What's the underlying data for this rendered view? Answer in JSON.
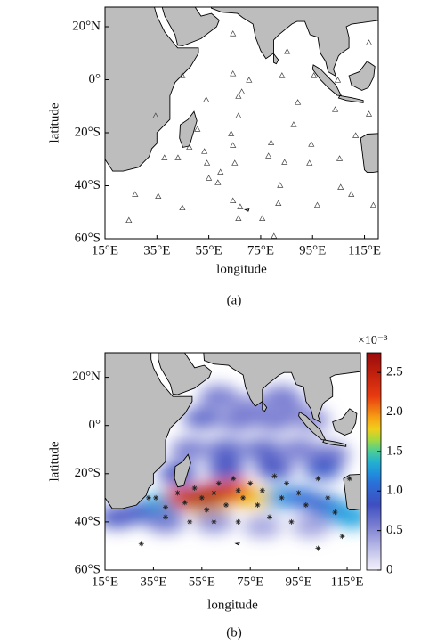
{
  "panels": [
    {
      "caption": "(a)",
      "xlabel": "longitude",
      "ylabel": "latitude",
      "xlim": [
        15,
        120.3
      ],
      "ylim": [
        -60,
        27.4
      ],
      "xticks": [
        {
          "value": 15,
          "label": "15°E"
        },
        {
          "value": 35,
          "label": "35°E"
        },
        {
          "value": 55,
          "label": "55°E"
        },
        {
          "value": 75,
          "label": "75°E"
        },
        {
          "value": 95,
          "label": "95°E"
        },
        {
          "value": 115,
          "label": "115°E"
        }
      ],
      "yticks": [
        {
          "value": 20,
          "label": "20°N"
        },
        {
          "value": 0,
          "label": "0°"
        },
        {
          "value": -20,
          "label": "20°S"
        },
        {
          "value": -40,
          "label": "40°S"
        },
        {
          "value": -60,
          "label": "60°S"
        }
      ],
      "stations": [
        [
          64.3,
          17.3
        ],
        [
          85.2,
          10.6
        ],
        [
          116.7,
          13.9
        ],
        [
          44.8,
          1.5
        ],
        [
          64.3,
          2.2
        ],
        [
          70.5,
          -0.2
        ],
        [
          83.2,
          1.5
        ],
        [
          95.5,
          1.5
        ],
        [
          104.7,
          -0.2
        ],
        [
          67.7,
          -4.6
        ],
        [
          66.4,
          -6.3
        ],
        [
          54.0,
          -7.6
        ],
        [
          34.5,
          -13.7
        ],
        [
          66.4,
          -13.7
        ],
        [
          89.3,
          -8.6
        ],
        [
          103.7,
          -11.3
        ],
        [
          116.7,
          -13.0
        ],
        [
          50.6,
          -18.7
        ],
        [
          63.6,
          -20.4
        ],
        [
          87.7,
          -17.0
        ],
        [
          111.6,
          -21.1
        ],
        [
          79.0,
          -23.8
        ],
        [
          94.5,
          -24.4
        ],
        [
          64.3,
          -24.8
        ],
        [
          47.5,
          -25.5
        ],
        [
          53.3,
          -27.1
        ],
        [
          37.9,
          -29.5
        ],
        [
          43.1,
          -29.5
        ],
        [
          54.3,
          -31.5
        ],
        [
          78.0,
          -28.8
        ],
        [
          84.2,
          -31.2
        ],
        [
          93.8,
          -31.5
        ],
        [
          105.4,
          -29.8
        ],
        [
          65.0,
          -31.5
        ],
        [
          55.0,
          -37.2
        ],
        [
          58.5,
          -38.9
        ],
        [
          59.5,
          -34.9
        ],
        [
          82.5,
          -39.9
        ],
        [
          105.8,
          -40.6
        ],
        [
          26.6,
          -43.3
        ],
        [
          35.5,
          -44.0
        ],
        [
          44.8,
          -48.4
        ],
        [
          64.3,
          -45.7
        ],
        [
          67.1,
          -48.0
        ],
        [
          81.8,
          -46.7
        ],
        [
          96.8,
          -47.4
        ],
        [
          109.9,
          -43.3
        ],
        [
          66.4,
          -52.4
        ],
        [
          118.4,
          -47.4
        ],
        [
          24.2,
          -53.1
        ],
        [
          75.6,
          -52.4
        ],
        [
          80.1,
          -59.1
        ]
      ]
    },
    {
      "caption": "(b)",
      "xlabel": "longitude",
      "ylabel": "latitude",
      "xlim": [
        15,
        120.5
      ],
      "ylim": [
        -60,
        30.2
      ],
      "xticks": [
        {
          "value": 15,
          "label": "15°E"
        },
        {
          "value": 35,
          "label": "35°E"
        },
        {
          "value": 55,
          "label": "55°E"
        },
        {
          "value": 75,
          "label": "75°E"
        },
        {
          "value": 95,
          "label": "95°E"
        },
        {
          "value": 115,
          "label": "115°E"
        }
      ],
      "yticks": [
        {
          "value": 20,
          "label": "20°N"
        },
        {
          "value": 0,
          "label": "0°"
        },
        {
          "value": -20,
          "label": "20°S"
        },
        {
          "value": -40,
          "label": "40°S"
        },
        {
          "value": -60,
          "label": "60°S"
        }
      ],
      "samples": [
        [
          33,
          -30
        ],
        [
          40,
          -34
        ],
        [
          45,
          -28
        ],
        [
          48,
          -32
        ],
        [
          52,
          -26
        ],
        [
          55,
          -30
        ],
        [
          57,
          -35
        ],
        [
          60,
          -28
        ],
        [
          62,
          -24
        ],
        [
          65,
          -33
        ],
        [
          68,
          -22
        ],
        [
          70,
          -27
        ],
        [
          72,
          -30
        ],
        [
          75,
          -24
        ],
        [
          78,
          -33
        ],
        [
          80,
          -27
        ],
        [
          85,
          -21
        ],
        [
          88,
          -30
        ],
        [
          90,
          -24
        ],
        [
          95,
          -28
        ],
        [
          98,
          -33
        ],
        [
          103,
          -22
        ],
        [
          107,
          -30
        ],
        [
          110,
          -36
        ],
        [
          83,
          -38
        ],
        [
          60,
          -40
        ],
        [
          50,
          -40
        ],
        [
          70,
          -40
        ],
        [
          92,
          -40
        ],
        [
          30,
          -49
        ],
        [
          103,
          -51
        ],
        [
          113,
          -46
        ],
        [
          116,
          -22
        ],
        [
          40,
          -38
        ],
        [
          36,
          -30
        ]
      ],
      "field": [
        [
          62,
          12,
          0.6
        ],
        [
          75,
          8,
          0.5
        ],
        [
          88,
          12,
          0.6
        ],
        [
          95,
          5,
          0.5
        ],
        [
          55,
          3,
          0.7
        ],
        [
          70,
          2,
          0.6
        ],
        [
          85,
          2,
          0.6
        ],
        [
          100,
          2,
          0.5
        ],
        [
          50,
          -10,
          0.6
        ],
        [
          65,
          -10,
          0.7
        ],
        [
          80,
          -10,
          0.7
        ],
        [
          95,
          -10,
          0.6
        ],
        [
          108,
          -12,
          0.6
        ],
        [
          45,
          -20,
          0.8
        ],
        [
          65,
          -18,
          0.8
        ],
        [
          85,
          -18,
          0.8
        ],
        [
          105,
          -18,
          0.9
        ],
        [
          30,
          -36,
          0.9
        ],
        [
          20,
          -38,
          0.8
        ],
        [
          40,
          -32,
          1.3
        ],
        [
          85,
          -30,
          1.3
        ],
        [
          95,
          -30,
          1.1
        ],
        [
          105,
          -33,
          1.0
        ],
        [
          112,
          -36,
          1.2
        ],
        [
          117,
          -38,
          1.3
        ],
        [
          58,
          -34,
          1.8
        ],
        [
          75,
          -30,
          1.8
        ],
        [
          68,
          -27,
          2.1
        ],
        [
          48,
          -30,
          2.3
        ],
        [
          62,
          -28,
          2.4
        ],
        [
          55,
          -30,
          2.6
        ],
        [
          40,
          -40,
          0.6
        ],
        [
          60,
          -40,
          0.5
        ],
        [
          80,
          -42,
          0.4
        ],
        [
          100,
          -42,
          0.4
        ]
      ],
      "colorbar": {
        "multiplier": "×10⁻³",
        "clim": [
          0,
          2.75
        ],
        "ticks": [
          0,
          0.5,
          {
            "value": 1,
            "label": "1.0"
          },
          1.5,
          {
            "value": 2,
            "label": "2.0"
          },
          2.5
        ]
      }
    }
  ]
}
